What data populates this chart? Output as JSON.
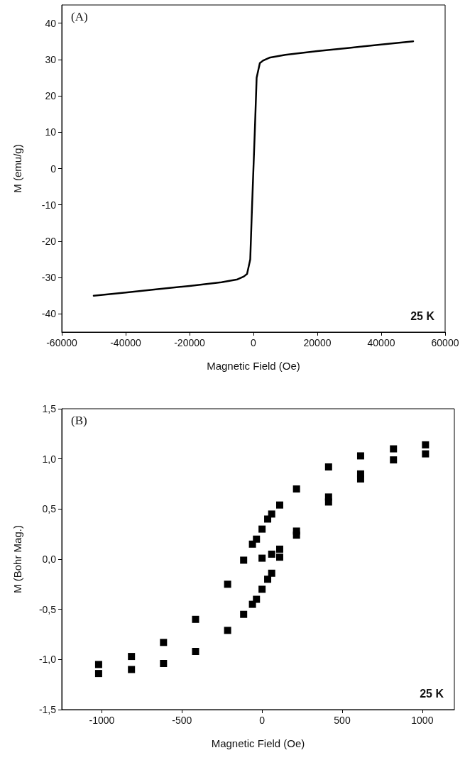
{
  "chart_data": [
    {
      "type": "line",
      "title": "(A)",
      "xlabel": "Magnetic Field (Oe)",
      "ylabel": "M (emu/g)",
      "annotations": [
        "25 K"
      ],
      "x": [
        -50000,
        -40000,
        -30000,
        -20000,
        -10000,
        -5000,
        -3000,
        -2000,
        -1000,
        -500,
        0,
        500,
        1000,
        2000,
        3000,
        5000,
        10000,
        20000,
        30000,
        40000,
        50000
      ],
      "series": [
        {
          "color": "#000000",
          "values": [
            -35,
            -34.1,
            -33.2,
            -32.3,
            -31.3,
            -30.5,
            -29.7,
            -29,
            -25,
            -12,
            0,
            12,
            25,
            29,
            29.7,
            30.5,
            31.3,
            32.3,
            33.2,
            34.1,
            35
          ]
        }
      ],
      "xlim": [
        -60000,
        60000
      ],
      "xticks": [
        -60000,
        -40000,
        -20000,
        0,
        20000,
        40000,
        60000
      ],
      "ylim": [
        -45,
        45
      ],
      "yticks": [
        -40,
        -30,
        -20,
        -10,
        0,
        10,
        20,
        30,
        40
      ],
      "grid": false,
      "marker": "none",
      "line_style": "solid"
    },
    {
      "type": "scatter",
      "title": "(B)",
      "xlabel": "Magnetic Field (Oe)",
      "ylabel": "M (Bohr Mag.)",
      "annotations": [
        "25 K"
      ],
      "x": [
        1020,
        1020,
        820,
        820,
        615,
        615,
        615,
        415,
        415,
        415,
        215,
        215,
        215,
        110,
        110,
        110,
        60,
        60,
        60,
        35,
        35,
        0,
        0,
        0,
        -35,
        -35,
        -60,
        -60,
        -115,
        -115,
        -215,
        -215,
        -415,
        -415,
        -615,
        -615,
        -815,
        -815,
        -1020,
        -1020
      ],
      "series": [
        {
          "color": "#000000",
          "values": [
            1.14,
            1.05,
            1.1,
            0.99,
            1.03,
            0.85,
            0.8,
            0.92,
            0.62,
            0.57,
            0.7,
            0.28,
            0.24,
            0.54,
            0.1,
            0.02,
            0.45,
            0.05,
            -0.14,
            0.4,
            -0.2,
            0.3,
            0.01,
            -0.3,
            0.2,
            -0.4,
            0.15,
            -0.45,
            -0.01,
            -0.55,
            -0.25,
            -0.71,
            -0.6,
            -0.92,
            -0.83,
            -1.04,
            -0.97,
            -1.1,
            -1.05,
            -1.14
          ]
        }
      ],
      "xlim": [
        -1250,
        1200
      ],
      "xticks": [
        -1000,
        -500,
        0,
        500,
        1000
      ],
      "ylim": [
        -1.5,
        1.5
      ],
      "yticks": [
        {
          "value": -1.5,
          "label": "-1,5"
        },
        {
          "value": -1.0,
          "label": "-1,0"
        },
        {
          "value": -0.5,
          "label": "-0,5"
        },
        {
          "value": 0,
          "label": "0,0"
        },
        {
          "value": 0.5,
          "label": "0,5"
        },
        {
          "value": 1.0,
          "label": "1,0"
        },
        {
          "value": 1.5,
          "label": "1,5"
        }
      ],
      "grid": false,
      "marker": "square"
    }
  ]
}
